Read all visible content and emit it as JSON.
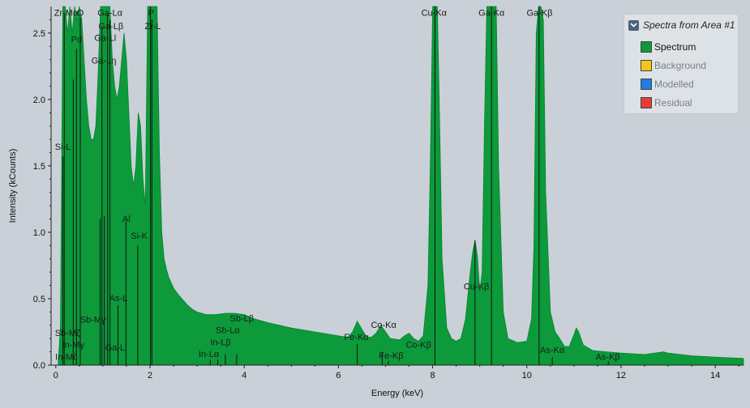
{
  "chart_data": {
    "type": "area",
    "xlabel": "Energy (keV)",
    "ylabel": "Intensity (kCounts)",
    "xlim": [
      -0.1,
      14.6
    ],
    "ylim": [
      0,
      2.7
    ],
    "xticks": [
      0,
      2,
      4,
      6,
      8,
      10,
      12,
      14
    ],
    "yticks": [
      0.0,
      0.5,
      1.0,
      1.5,
      2.0,
      2.5
    ],
    "ytick_labels": [
      "0.0",
      "0.5",
      "1.0",
      "1.5",
      "2.0",
      "2.5"
    ],
    "grid": false,
    "legend_position": "top-right",
    "series": [
      {
        "name": "Spectrum",
        "color": "#0d9a3b",
        "points": [
          [
            0.05,
            0.0
          ],
          [
            0.1,
            0.3
          ],
          [
            0.15,
            2.7
          ],
          [
            0.2,
            2.7
          ],
          [
            0.25,
            2.5
          ],
          [
            0.3,
            2.7
          ],
          [
            0.35,
            2.5
          ],
          [
            0.4,
            2.7
          ],
          [
            0.45,
            2.6
          ],
          [
            0.5,
            2.7
          ],
          [
            0.55,
            2.6
          ],
          [
            0.6,
            2.3
          ],
          [
            0.65,
            2.0
          ],
          [
            0.7,
            1.8
          ],
          [
            0.75,
            1.7
          ],
          [
            0.8,
            1.7
          ],
          [
            0.85,
            1.8
          ],
          [
            0.9,
            2.2
          ],
          [
            0.95,
            2.7
          ],
          [
            1.0,
            2.7
          ],
          [
            1.05,
            2.7
          ],
          [
            1.1,
            2.7
          ],
          [
            1.15,
            2.7
          ],
          [
            1.2,
            2.3
          ],
          [
            1.25,
            2.1
          ],
          [
            1.3,
            2.0
          ],
          [
            1.35,
            2.1
          ],
          [
            1.4,
            2.3
          ],
          [
            1.45,
            2.5
          ],
          [
            1.5,
            2.3
          ],
          [
            1.55,
            1.9
          ],
          [
            1.6,
            1.5
          ],
          [
            1.65,
            1.35
          ],
          [
            1.7,
            1.5
          ],
          [
            1.75,
            1.9
          ],
          [
            1.8,
            1.8
          ],
          [
            1.85,
            1.4
          ],
          [
            1.9,
            1.2
          ],
          [
            1.95,
            2.7
          ],
          [
            2.0,
            2.7
          ],
          [
            2.05,
            2.7
          ],
          [
            2.1,
            2.7
          ],
          [
            2.15,
            2.7
          ],
          [
            2.2,
            1.6
          ],
          [
            2.25,
            1.0
          ],
          [
            2.3,
            0.8
          ],
          [
            2.35,
            0.72
          ],
          [
            2.4,
            0.66
          ],
          [
            2.45,
            0.62
          ],
          [
            2.5,
            0.58
          ],
          [
            2.6,
            0.53
          ],
          [
            2.7,
            0.49
          ],
          [
            2.8,
            0.45
          ],
          [
            2.9,
            0.42
          ],
          [
            3.0,
            0.4
          ],
          [
            3.2,
            0.38
          ],
          [
            3.4,
            0.38
          ],
          [
            3.6,
            0.39
          ],
          [
            3.8,
            0.39
          ],
          [
            4.0,
            0.38
          ],
          [
            4.2,
            0.35
          ],
          [
            4.5,
            0.32
          ],
          [
            5.0,
            0.28
          ],
          [
            5.5,
            0.25
          ],
          [
            6.0,
            0.22
          ],
          [
            6.2,
            0.21
          ],
          [
            6.3,
            0.25
          ],
          [
            6.4,
            0.33
          ],
          [
            6.5,
            0.27
          ],
          [
            6.6,
            0.21
          ],
          [
            6.7,
            0.21
          ],
          [
            6.8,
            0.24
          ],
          [
            6.9,
            0.3
          ],
          [
            7.0,
            0.25
          ],
          [
            7.1,
            0.2
          ],
          [
            7.3,
            0.19
          ],
          [
            7.4,
            0.22
          ],
          [
            7.5,
            0.24
          ],
          [
            7.6,
            0.2
          ],
          [
            7.7,
            0.18
          ],
          [
            7.8,
            0.22
          ],
          [
            7.9,
            0.6
          ],
          [
            7.95,
            1.5
          ],
          [
            8.0,
            2.7
          ],
          [
            8.05,
            2.7
          ],
          [
            8.1,
            2.7
          ],
          [
            8.15,
            1.8
          ],
          [
            8.2,
            0.8
          ],
          [
            8.3,
            0.28
          ],
          [
            8.4,
            0.2
          ],
          [
            8.5,
            0.18
          ],
          [
            8.6,
            0.2
          ],
          [
            8.7,
            0.35
          ],
          [
            8.8,
            0.7
          ],
          [
            8.85,
            0.85
          ],
          [
            8.9,
            0.94
          ],
          [
            8.95,
            0.82
          ],
          [
            9.0,
            0.55
          ],
          [
            9.05,
            0.7
          ],
          [
            9.1,
            1.8
          ],
          [
            9.15,
            2.7
          ],
          [
            9.2,
            2.7
          ],
          [
            9.25,
            2.7
          ],
          [
            9.3,
            2.7
          ],
          [
            9.35,
            2.7
          ],
          [
            9.4,
            1.5
          ],
          [
            9.5,
            0.4
          ],
          [
            9.6,
            0.2
          ],
          [
            9.8,
            0.17
          ],
          [
            10.0,
            0.18
          ],
          [
            10.1,
            0.35
          ],
          [
            10.15,
            0.9
          ],
          [
            10.2,
            2.5
          ],
          [
            10.25,
            2.7
          ],
          [
            10.3,
            2.7
          ],
          [
            10.35,
            2.6
          ],
          [
            10.4,
            1.3
          ],
          [
            10.5,
            0.4
          ],
          [
            10.6,
            0.25
          ],
          [
            10.7,
            0.2
          ],
          [
            10.8,
            0.14
          ],
          [
            10.9,
            0.14
          ],
          [
            11.0,
            0.23
          ],
          [
            11.05,
            0.28
          ],
          [
            11.1,
            0.25
          ],
          [
            11.2,
            0.15
          ],
          [
            11.4,
            0.11
          ],
          [
            11.7,
            0.1
          ],
          [
            12.0,
            0.09
          ],
          [
            12.5,
            0.08
          ],
          [
            12.9,
            0.1
          ],
          [
            13.0,
            0.09
          ],
          [
            13.5,
            0.07
          ],
          [
            14.0,
            0.06
          ],
          [
            14.6,
            0.05
          ]
        ]
      },
      {
        "name": "Background",
        "color": "#f5c518"
      },
      {
        "name": "Modelled",
        "color": "#1f7fe0"
      },
      {
        "name": "Residual",
        "color": "#e83a3a"
      }
    ],
    "peak_markers": [
      {
        "x": 0.151,
        "h": 1.57
      },
      {
        "x": 0.18,
        "h": 2.65
      },
      {
        "x": 0.37,
        "h": 2.15
      },
      {
        "x": 0.44,
        "h": 2.38
      },
      {
        "x": 0.52,
        "h": 2.62
      },
      {
        "x": 0.94,
        "h": 1.1
      },
      {
        "x": 0.98,
        "h": 2.55
      },
      {
        "x": 1.03,
        "h": 1.12
      },
      {
        "x": 1.1,
        "h": 2.65
      },
      {
        "x": 1.15,
        "h": 2.6
      },
      {
        "x": 1.49,
        "h": 1.08
      },
      {
        "x": 1.74,
        "h": 0.9
      },
      {
        "x": 2.01,
        "h": 2.7
      },
      {
        "x": 2.04,
        "h": 2.6
      },
      {
        "x": 1.32,
        "h": 0.45
      },
      {
        "x": 3.28,
        "h": 0.04
      },
      {
        "x": 3.44,
        "h": 0.04
      },
      {
        "x": 3.6,
        "h": 0.08
      },
      {
        "x": 3.84,
        "h": 0.08
      },
      {
        "x": 6.4,
        "h": 0.16
      },
      {
        "x": 6.93,
        "h": 0.1
      },
      {
        "x": 7.06,
        "h": 0.03
      },
      {
        "x": 8.05,
        "h": 2.7
      },
      {
        "x": 8.9,
        "h": 0.94
      },
      {
        "x": 9.25,
        "h": 2.7
      },
      {
        "x": 10.26,
        "h": 2.7
      },
      {
        "x": 10.54,
        "h": 0.06
      },
      {
        "x": 11.73,
        "h": 0.03
      }
    ],
    "annotations": [
      {
        "text": "Zr-Mα",
        "x": 0.22,
        "y": 2.63
      },
      {
        "text": "O",
        "x": 0.52,
        "y": 2.63
      },
      {
        "text": "Pd",
        "x": 0.44,
        "y": 2.43
      },
      {
        "text": "Si-L",
        "x": 0.15,
        "y": 1.62
      },
      {
        "text": "Ga-Lα",
        "x": 1.15,
        "y": 2.63
      },
      {
        "text": "Ga-Lβ",
        "x": 1.17,
        "y": 2.53
      },
      {
        "text": "Ga-Ll",
        "x": 1.05,
        "y": 2.44
      },
      {
        "text": "Ga-Lη",
        "x": 1.02,
        "y": 2.27
      },
      {
        "text": "P",
        "x": 2.02,
        "y": 2.63
      },
      {
        "text": "Zr-L",
        "x": 2.06,
        "y": 2.53
      },
      {
        "text": "Al",
        "x": 1.5,
        "y": 1.08
      },
      {
        "text": "Si-K",
        "x": 1.77,
        "y": 0.95
      },
      {
        "text": "As-L",
        "x": 1.33,
        "y": 0.48
      },
      {
        "text": "Sb-Mγ",
        "x": 0.79,
        "y": 0.32
      },
      {
        "text": "Sb-Mζ",
        "x": 0.25,
        "y": 0.22
      },
      {
        "text": "In-Mγ",
        "x": 0.37,
        "y": 0.13
      },
      {
        "text": "In-Mζ",
        "x": 0.22,
        "y": 0.04
      },
      {
        "text": "Ga-Ll",
        "x": 1.28,
        "y": 0.11
      },
      {
        "text": "Sb-Lβ",
        "x": 3.95,
        "y": 0.33
      },
      {
        "text": "Sb-Lα",
        "x": 3.65,
        "y": 0.24
      },
      {
        "text": "In-Lβ",
        "x": 3.5,
        "y": 0.15
      },
      {
        "text": "In-Lα",
        "x": 3.25,
        "y": 0.06
      },
      {
        "text": "Fe-Kα",
        "x": 6.38,
        "y": 0.19
      },
      {
        "text": "Co-Kα",
        "x": 6.96,
        "y": 0.28
      },
      {
        "text": "Fe-Kβ",
        "x": 7.12,
        "y": 0.05
      },
      {
        "text": "Co-Kβ",
        "x": 7.7,
        "y": 0.13
      },
      {
        "text": "Cu-Kα",
        "x": 8.03,
        "y": 2.63
      },
      {
        "text": "Cu-Kβ",
        "x": 8.93,
        "y": 0.57
      },
      {
        "text": "Ga-Kα",
        "x": 9.25,
        "y": 2.63
      },
      {
        "text": "Ga-Kβ",
        "x": 10.27,
        "y": 2.63
      },
      {
        "text": "As-Kα",
        "x": 10.54,
        "y": 0.09
      },
      {
        "text": "As-Kβ",
        "x": 11.72,
        "y": 0.04
      }
    ]
  },
  "legend": {
    "title": "Spectra from Area #1",
    "toggle_icon": "chevron-down-icon",
    "items": [
      {
        "label": "Spectrum",
        "color": "#0d9a3b",
        "active": true
      },
      {
        "label": "Background",
        "color": "#f5c518",
        "active": false
      },
      {
        "label": "Modelled",
        "color": "#1f7fe0",
        "active": false
      },
      {
        "label": "Residual",
        "color": "#e83a3a",
        "active": false
      }
    ]
  }
}
